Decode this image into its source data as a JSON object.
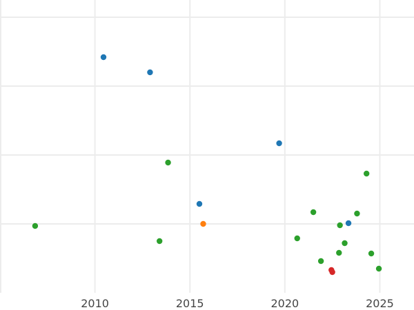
{
  "chart_data": {
    "type": "scatter",
    "title": "",
    "xlabel": "",
    "ylabel": "",
    "grid": true,
    "xlim": [
      2005,
      2026.8
    ],
    "ylim": [
      0,
      4.25
    ],
    "x_ticks": [
      2010,
      2015,
      2020,
      2025
    ],
    "x_tick_labels": [
      "2010",
      "2015",
      "2020",
      "2025"
    ],
    "y_gridlines": [
      1,
      2,
      3,
      4
    ],
    "series": [
      {
        "color": "#1f77b4",
        "points": [
          {
            "x": 2010.45,
            "y": 3.42
          },
          {
            "x": 2012.9,
            "y": 3.2
          },
          {
            "x": 2015.5,
            "y": 1.29
          },
          {
            "x": 2019.7,
            "y": 2.17
          },
          {
            "x": 2023.35,
            "y": 1.01
          }
        ]
      },
      {
        "color": "#2ca02c",
        "points": [
          {
            "x": 2006.85,
            "y": 0.97
          },
          {
            "x": 2013.4,
            "y": 0.75
          },
          {
            "x": 2013.85,
            "y": 1.89
          },
          {
            "x": 2020.65,
            "y": 0.79
          },
          {
            "x": 2021.5,
            "y": 1.17
          },
          {
            "x": 2021.9,
            "y": 0.46
          },
          {
            "x": 2022.85,
            "y": 0.58
          },
          {
            "x": 2022.9,
            "y": 0.98
          },
          {
            "x": 2023.15,
            "y": 0.72
          },
          {
            "x": 2023.8,
            "y": 1.15
          },
          {
            "x": 2024.3,
            "y": 1.73
          },
          {
            "x": 2024.55,
            "y": 0.57
          },
          {
            "x": 2024.95,
            "y": 0.35
          }
        ]
      },
      {
        "color": "#ff7f0e",
        "points": [
          {
            "x": 2015.7,
            "y": 1
          }
        ]
      },
      {
        "color": "#d62728",
        "points": [
          {
            "x": 2022.45,
            "y": 0.33
          },
          {
            "x": 2022.5,
            "y": 0.3
          }
        ]
      }
    ]
  }
}
